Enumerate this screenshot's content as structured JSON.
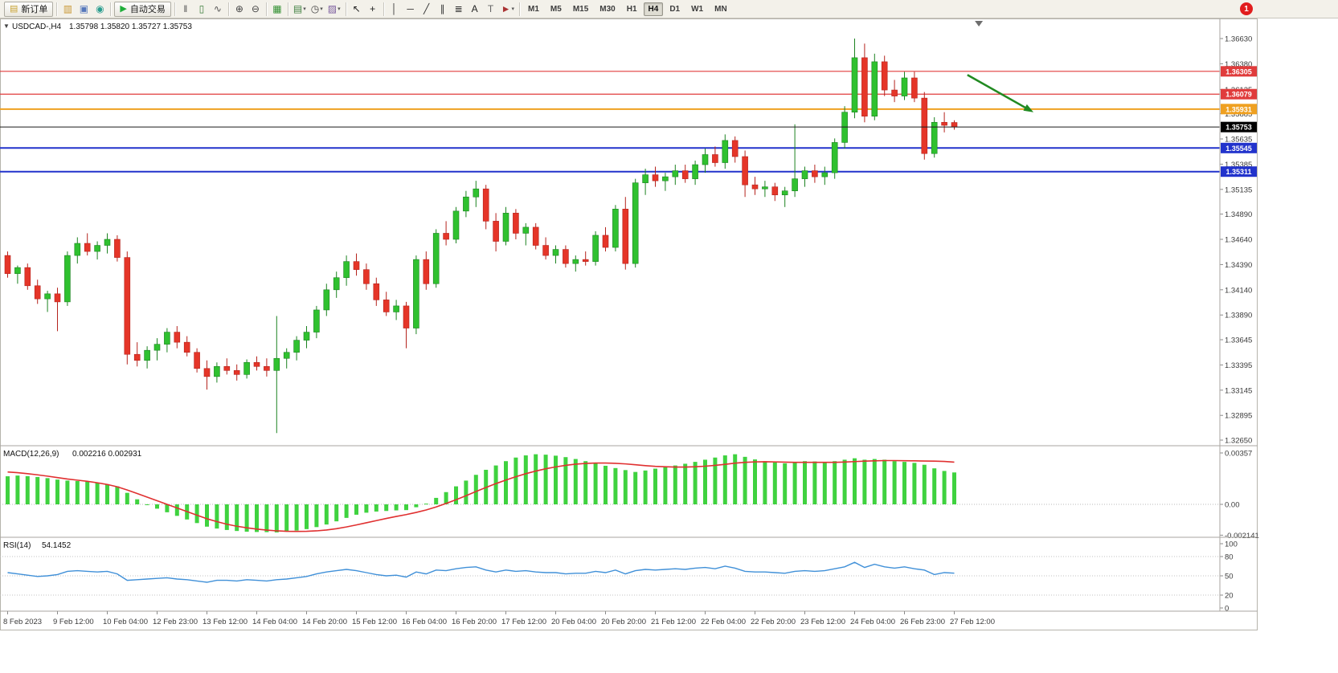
{
  "toolbar": {
    "badge": "1",
    "items": [
      {
        "type": "button",
        "name": "new-order-button",
        "icon_name": "new-order-icon",
        "glyph": "▤",
        "glyph_color": "#c8a232",
        "label": "新订单"
      },
      {
        "type": "sep"
      },
      {
        "type": "icon",
        "name": "market-watch-icon",
        "glyph": "▥",
        "color": "#c89632"
      },
      {
        "type": "icon",
        "name": "navigator-icon",
        "glyph": "▣",
        "color": "#5577bb"
      },
      {
        "type": "icon",
        "name": "terminal-icon",
        "glyph": "◉",
        "color": "#2a9d8f"
      },
      {
        "type": "sep"
      },
      {
        "type": "button",
        "name": "auto-trading-button",
        "icon_name": "auto-trading-play-icon",
        "glyph": "▶",
        "glyph_color": "#1fae3a",
        "label": "自动交易"
      },
      {
        "type": "sep"
      },
      {
        "type": "icon",
        "name": "bar-chart-icon",
        "glyph": "‖",
        "color": "#555555"
      },
      {
        "type": "icon",
        "name": "candlestick-chart-icon",
        "glyph": "▯",
        "color": "#3a7d3a"
      },
      {
        "type": "icon",
        "name": "line-chart-icon",
        "glyph": "∿",
        "color": "#555555"
      },
      {
        "type": "sep"
      },
      {
        "type": "icon",
        "name": "zoom-in-icon",
        "glyph": "⊕",
        "color": "#444444"
      },
      {
        "type": "icon",
        "name": "zoom-out-icon",
        "glyph": "⊖",
        "color": "#444444"
      },
      {
        "type": "sep"
      },
      {
        "type": "icon",
        "name": "tile-windows-icon",
        "glyph": "▦",
        "color": "#2f8f2f"
      },
      {
        "type": "sep"
      },
      {
        "type": "icon",
        "name": "new-chart-icon",
        "glyph": "▤",
        "color": "#3f7f3f",
        "dropdown": true
      },
      {
        "type": "icon",
        "name": "periods-icon",
        "glyph": "◷",
        "color": "#444444",
        "dropdown": true
      },
      {
        "type": "icon",
        "name": "templates-icon",
        "glyph": "▨",
        "color": "#7a5c9e",
        "dropdown": true
      },
      {
        "type": "sep"
      },
      {
        "type": "icon",
        "name": "cursor-icon",
        "glyph": "↖",
        "color": "#222222"
      },
      {
        "type": "icon",
        "name": "crosshair-icon",
        "glyph": "+",
        "color": "#222222"
      },
      {
        "type": "sep"
      },
      {
        "type": "icon",
        "name": "vertical-line-icon",
        "glyph": "│",
        "color": "#333333"
      },
      {
        "type": "icon",
        "name": "horizontal-line-icon",
        "glyph": "─",
        "color": "#333333"
      },
      {
        "type": "icon",
        "name": "trendline-icon",
        "glyph": "╱",
        "color": "#333333"
      },
      {
        "type": "icon",
        "name": "equidistant-channel-icon",
        "glyph": "∥",
        "color": "#333333"
      },
      {
        "type": "icon",
        "name": "fibonacci-retracement-icon",
        "glyph": "≣",
        "color": "#333333"
      },
      {
        "type": "icon",
        "name": "text-icon",
        "glyph": "A",
        "color": "#222222"
      },
      {
        "type": "icon",
        "name": "text-label-icon",
        "glyph": "T",
        "color": "#666666"
      },
      {
        "type": "icon",
        "name": "arrows-icon",
        "glyph": "►",
        "color": "#aa3333",
        "dropdown": true
      },
      {
        "type": "sep"
      },
      {
        "type": "tf",
        "label": "M1"
      },
      {
        "type": "tf",
        "label": "M5"
      },
      {
        "type": "tf",
        "label": "M15"
      },
      {
        "type": "tf",
        "label": "M30"
      },
      {
        "type": "tf",
        "label": "H1"
      },
      {
        "type": "tf",
        "label": "H4",
        "active": true
      },
      {
        "type": "tf",
        "label": "D1"
      },
      {
        "type": "tf",
        "label": "W1"
      },
      {
        "type": "tf",
        "label": "MN"
      }
    ]
  },
  "chart": {
    "dropdown_glyph": "▼",
    "symbol_period": "USDCAD-,H4",
    "ohlc": "1.35798 1.35820 1.35727 1.35753"
  },
  "chart_data": {
    "type": "candlestick",
    "symbol": "USDCAD-",
    "period": "H4",
    "open": 1.35798,
    "high": 1.3582,
    "low": 1.35727,
    "close": 1.35753,
    "y_axis": {
      "max": 1.3663,
      "min": 1.3265,
      "ticks": [
        "1.36630",
        "1.36380",
        "1.36125",
        "1.35885",
        "1.35635",
        "1.35385",
        "1.35135",
        "1.34890",
        "1.34640",
        "1.34390",
        "1.34140",
        "1.33890",
        "1.33645",
        "1.33395",
        "1.33145",
        "1.32895",
        "1.32650"
      ]
    },
    "h_lines": [
      {
        "price": "1.36305",
        "color": "#e03c3c",
        "width": 1.2
      },
      {
        "price": "1.36079",
        "color": "#e03c3c",
        "width": 1.2
      },
      {
        "price": "1.35931",
        "color": "#efa021",
        "width": 2
      },
      {
        "price": "1.35545",
        "color": "#2233cc",
        "width": 2
      },
      {
        "price": "1.35311",
        "color": "#2233cc",
        "width": 2
      }
    ],
    "current_price": {
      "price": "1.35753",
      "color": "#1a1a1a"
    },
    "label_every": 5,
    "time_labels": [
      "8 Feb 2023",
      "9 Feb 12:00",
      "10 Feb 04:00",
      "12 Feb 23:00",
      "13 Feb 12:00",
      "14 Feb 04:00",
      "14 Feb 20:00",
      "15 Feb 12:00",
      "16 Feb 04:00",
      "16 Feb 20:00",
      "17 Feb 12:00",
      "20 Feb 04:00",
      "20 Feb 20:00",
      "21 Feb 12:00",
      "22 Feb 04:00",
      "22 Feb 20:00",
      "23 Feb 12:00",
      "24 Feb 04:00",
      "26 Feb 23:00",
      "27 Feb 12:00"
    ],
    "shift_marker_bar": 97.75,
    "arrow_object": {
      "from": {
        "bar": 96.6,
        "price": 1.3627
      },
      "to": {
        "bar": 102.6,
        "price": 1.35935
      },
      "color": "#218a21"
    },
    "candles": [
      [
        1.3448,
        1.3452,
        1.3426,
        1.343
      ],
      [
        1.343,
        1.3438,
        1.342,
        1.3436
      ],
      [
        1.3436,
        1.344,
        1.3414,
        1.3418
      ],
      [
        1.3418,
        1.3424,
        1.34,
        1.3405
      ],
      [
        1.3405,
        1.3413,
        1.3392,
        1.341
      ],
      [
        1.341,
        1.3416,
        1.3373,
        1.3402
      ],
      [
        1.3402,
        1.3452,
        1.3398,
        1.3448
      ],
      [
        1.3448,
        1.3466,
        1.344,
        1.346
      ],
      [
        1.346,
        1.347,
        1.3448,
        1.3452
      ],
      [
        1.3452,
        1.3462,
        1.3444,
        1.3458
      ],
      [
        1.3458,
        1.347,
        1.345,
        1.3464
      ],
      [
        1.3464,
        1.3468,
        1.3442,
        1.3446
      ],
      [
        1.3446,
        1.3452,
        1.334,
        1.335
      ],
      [
        1.335,
        1.3362,
        1.3338,
        1.3344
      ],
      [
        1.3344,
        1.3358,
        1.3336,
        1.3354
      ],
      [
        1.3354,
        1.3366,
        1.3344,
        1.336
      ],
      [
        1.336,
        1.3376,
        1.3352,
        1.3372
      ],
      [
        1.3372,
        1.3378,
        1.3356,
        1.3362
      ],
      [
        1.3362,
        1.3368,
        1.3348,
        1.3352
      ],
      [
        1.3352,
        1.3356,
        1.3332,
        1.3336
      ],
      [
        1.3336,
        1.3344,
        1.3315,
        1.3328
      ],
      [
        1.3328,
        1.3342,
        1.3322,
        1.3338
      ],
      [
        1.3338,
        1.3346,
        1.333,
        1.3334
      ],
      [
        1.3334,
        1.334,
        1.3324,
        1.333
      ],
      [
        1.333,
        1.3345,
        1.3326,
        1.3342
      ],
      [
        1.3342,
        1.3348,
        1.3334,
        1.3338
      ],
      [
        1.3338,
        1.3346,
        1.3328,
        1.3334
      ],
      [
        1.3334,
        1.3388,
        1.3272,
        1.3346
      ],
      [
        1.3346,
        1.3356,
        1.3336,
        1.3352
      ],
      [
        1.3352,
        1.3368,
        1.3344,
        1.3364
      ],
      [
        1.3364,
        1.3378,
        1.3356,
        1.3372
      ],
      [
        1.3372,
        1.3398,
        1.3366,
        1.3394
      ],
      [
        1.3394,
        1.342,
        1.3388,
        1.3414
      ],
      [
        1.3414,
        1.3432,
        1.3406,
        1.3426
      ],
      [
        1.3426,
        1.3448,
        1.3418,
        1.3442
      ],
      [
        1.3442,
        1.345,
        1.3428,
        1.3434
      ],
      [
        1.3434,
        1.344,
        1.3414,
        1.342
      ],
      [
        1.342,
        1.3426,
        1.3398,
        1.3404
      ],
      [
        1.3404,
        1.3412,
        1.3388,
        1.3392
      ],
      [
        1.3392,
        1.3404,
        1.3384,
        1.3398
      ],
      [
        1.3398,
        1.3402,
        1.3356,
        1.3376
      ],
      [
        1.3376,
        1.3448,
        1.337,
        1.3444
      ],
      [
        1.3444,
        1.3452,
        1.3414,
        1.342
      ],
      [
        1.342,
        1.3474,
        1.3416,
        1.347
      ],
      [
        1.347,
        1.3482,
        1.3458,
        1.3464
      ],
      [
        1.3464,
        1.3496,
        1.346,
        1.3492
      ],
      [
        1.3492,
        1.3512,
        1.3486,
        1.3506
      ],
      [
        1.3506,
        1.3522,
        1.3496,
        1.3514
      ],
      [
        1.3514,
        1.3518,
        1.3474,
        1.3482
      ],
      [
        1.3482,
        1.349,
        1.3452,
        1.3462
      ],
      [
        1.3462,
        1.3496,
        1.3458,
        1.349
      ],
      [
        1.349,
        1.3494,
        1.3464,
        1.347
      ],
      [
        1.347,
        1.348,
        1.3458,
        1.3476
      ],
      [
        1.3476,
        1.348,
        1.3454,
        1.3458
      ],
      [
        1.3458,
        1.3466,
        1.3444,
        1.3448
      ],
      [
        1.3448,
        1.3458,
        1.344,
        1.3454
      ],
      [
        1.3454,
        1.3458,
        1.3436,
        1.344
      ],
      [
        1.344,
        1.3448,
        1.3432,
        1.3444
      ],
      [
        1.3444,
        1.3452,
        1.3438,
        1.3442
      ],
      [
        1.3442,
        1.3472,
        1.3438,
        1.3468
      ],
      [
        1.3468,
        1.3476,
        1.3452,
        1.3456
      ],
      [
        1.3456,
        1.3498,
        1.3452,
        1.3494
      ],
      [
        1.3494,
        1.3506,
        1.3434,
        1.344
      ],
      [
        1.344,
        1.3524,
        1.3436,
        1.352
      ],
      [
        1.352,
        1.3534,
        1.3508,
        1.3528
      ],
      [
        1.3528,
        1.3536,
        1.3516,
        1.3522
      ],
      [
        1.3522,
        1.353,
        1.3512,
        1.3526
      ],
      [
        1.3526,
        1.3538,
        1.3518,
        1.3532
      ],
      [
        1.3532,
        1.3538,
        1.352,
        1.3524
      ],
      [
        1.3524,
        1.3542,
        1.3518,
        1.3538
      ],
      [
        1.3538,
        1.3554,
        1.353,
        1.3548
      ],
      [
        1.3548,
        1.3556,
        1.3536,
        1.354
      ],
      [
        1.354,
        1.3568,
        1.3534,
        1.3562
      ],
      [
        1.3562,
        1.3566,
        1.354,
        1.3546
      ],
      [
        1.3546,
        1.3552,
        1.3506,
        1.3518
      ],
      [
        1.3518,
        1.3526,
        1.3508,
        1.3514
      ],
      [
        1.3514,
        1.3522,
        1.3506,
        1.3516
      ],
      [
        1.3516,
        1.352,
        1.3502,
        1.3508
      ],
      [
        1.3508,
        1.3516,
        1.3496,
        1.3512
      ],
      [
        1.3512,
        1.3578,
        1.3506,
        1.3524
      ],
      [
        1.3524,
        1.3536,
        1.3516,
        1.3532
      ],
      [
        1.3532,
        1.3538,
        1.352,
        1.3526
      ],
      [
        1.3526,
        1.3536,
        1.3518,
        1.353
      ],
      [
        1.353,
        1.3564,
        1.3524,
        1.356
      ],
      [
        1.356,
        1.3596,
        1.3554,
        1.359
      ],
      [
        1.359,
        1.3663,
        1.3584,
        1.3644
      ],
      [
        1.3644,
        1.3658,
        1.358,
        1.3586
      ],
      [
        1.3586,
        1.3648,
        1.3582,
        1.364
      ],
      [
        1.364,
        1.3646,
        1.3606,
        1.3612
      ],
      [
        1.3612,
        1.3622,
        1.36,
        1.3606
      ],
      [
        1.3606,
        1.363,
        1.3602,
        1.3624
      ],
      [
        1.3624,
        1.363,
        1.36,
        1.3604
      ],
      [
        1.3604,
        1.361,
        1.3543,
        1.3549
      ],
      [
        1.3549,
        1.3585,
        1.3545,
        1.358
      ],
      [
        1.358,
        1.359,
        1.357,
        1.3577
      ],
      [
        1.35798,
        1.3582,
        1.35727,
        1.35753
      ]
    ],
    "macd": {
      "label": "MACD(12,26,9)",
      "values_text": "0.002216 0.002931",
      "main_value": 0.002216,
      "signal_value": 0.002931,
      "axis": {
        "max_label": "0.00357",
        "max_value": 0.00357,
        "zero_label": "0.00",
        "min_label": "-0.002141",
        "min_value": -0.002141
      },
      "hist": [
        0.00195,
        0.002,
        0.00196,
        0.0019,
        0.00182,
        0.00172,
        0.00165,
        0.00162,
        0.00158,
        0.0015,
        0.0014,
        0.00125,
        0.0008,
        0.00035,
        0.0,
        -0.0003,
        -0.00055,
        -0.0008,
        -0.00105,
        -0.0013,
        -0.00155,
        -0.00168,
        -0.00178,
        -0.00185,
        -0.0019,
        -0.00192,
        -0.00193,
        -0.00195,
        -0.0019,
        -0.00182,
        -0.00172,
        -0.00158,
        -0.0014,
        -0.00118,
        -0.00094,
        -0.00072,
        -0.00058,
        -0.0005,
        -0.00046,
        -0.00042,
        -0.0004,
        -0.0002,
        5e-05,
        0.00045,
        0.00085,
        0.00125,
        0.00165,
        0.00205,
        0.0024,
        0.0027,
        0.003,
        0.00325,
        0.0034,
        0.00348,
        0.00345,
        0.00338,
        0.00328,
        0.00315,
        0.003,
        0.00285,
        0.00268,
        0.00252,
        0.00238,
        0.00225,
        0.00235,
        0.00248,
        0.00258,
        0.0027,
        0.00282,
        0.00295,
        0.0031,
        0.00325,
        0.0034,
        0.00348,
        0.0033,
        0.00312,
        0.003,
        0.00292,
        0.00285,
        0.00295,
        0.003,
        0.00298,
        0.00295,
        0.003,
        0.0031,
        0.0032,
        0.0031,
        0.00315,
        0.0031,
        0.003,
        0.00295,
        0.00288,
        0.00275,
        0.0025,
        0.00232,
        0.002216
      ],
      "signal": [
        0.00225,
        0.0022,
        0.00213,
        0.00205,
        0.00196,
        0.00186,
        0.00176,
        0.00168,
        0.0016,
        0.0015,
        0.00138,
        0.00122,
        0.001,
        0.00075,
        0.0005,
        0.00025,
        0.0,
        -0.00025,
        -0.0005,
        -0.00075,
        -0.001,
        -0.0012,
        -0.00138,
        -0.00152,
        -0.00163,
        -0.00172,
        -0.00179,
        -0.00184,
        -0.00187,
        -0.00188,
        -0.00187,
        -0.00184,
        -0.00178,
        -0.00169,
        -0.00157,
        -0.00143,
        -0.00128,
        -0.00113,
        -0.00098,
        -0.00084,
        -0.00071,
        -0.00056,
        -0.00039,
        -0.00018,
        6e-05,
        0.00032,
        0.0006,
        0.00089,
        0.00117,
        0.00144,
        0.00169,
        0.00192,
        0.00213,
        0.00231,
        0.00247,
        0.0026,
        0.00271,
        0.00279,
        0.00284,
        0.00287,
        0.00287,
        0.00285,
        0.00281,
        0.00275,
        0.00269,
        0.00264,
        0.00261,
        0.00259,
        0.00259,
        0.00261,
        0.00265,
        0.00271,
        0.00278,
        0.00286,
        0.00292,
        0.00295,
        0.00296,
        0.00295,
        0.00293,
        0.00292,
        0.00292,
        0.00292,
        0.00292,
        0.00292,
        0.00294,
        0.00297,
        0.003,
        0.00302,
        0.00304,
        0.00304,
        0.00303,
        0.00302,
        0.00301,
        0.003,
        0.00298,
        0.002931
      ]
    },
    "rsi": {
      "label": "RSI(14)",
      "value_text": "54.1452",
      "value": 54.1452,
      "axis_labels": [
        "100",
        "80",
        "50",
        "20",
        "0"
      ],
      "levels_dotted": [
        80,
        50,
        20
      ],
      "values": [
        55,
        53,
        51,
        49,
        50,
        52,
        57,
        58,
        57,
        56,
        57,
        53,
        43,
        44,
        45,
        46,
        47,
        45,
        44,
        42,
        40,
        43,
        43,
        42,
        44,
        43,
        42,
        44,
        45,
        47,
        49,
        53,
        56,
        58,
        60,
        58,
        55,
        52,
        50,
        51,
        48,
        56,
        53,
        59,
        58,
        61,
        63,
        64,
        59,
        56,
        59,
        57,
        58,
        56,
        55,
        55,
        53,
        54,
        54,
        57,
        55,
        59,
        53,
        58,
        60,
        59,
        60,
        61,
        60,
        62,
        63,
        61,
        65,
        62,
        57,
        56,
        56,
        55,
        54,
        57,
        58,
        57,
        58,
        61,
        64,
        71,
        63,
        68,
        64,
        62,
        64,
        61,
        59,
        52,
        55,
        54.1
      ]
    },
    "style": {
      "bull": "#2fc12f",
      "bull_dark": "#1d8322",
      "bear": "#e53528",
      "bear_dark": "#b5241e",
      "macd_bar": "#3fd23f",
      "macd_signal": "#e03030",
      "rsi_line": "#4090d8"
    }
  }
}
